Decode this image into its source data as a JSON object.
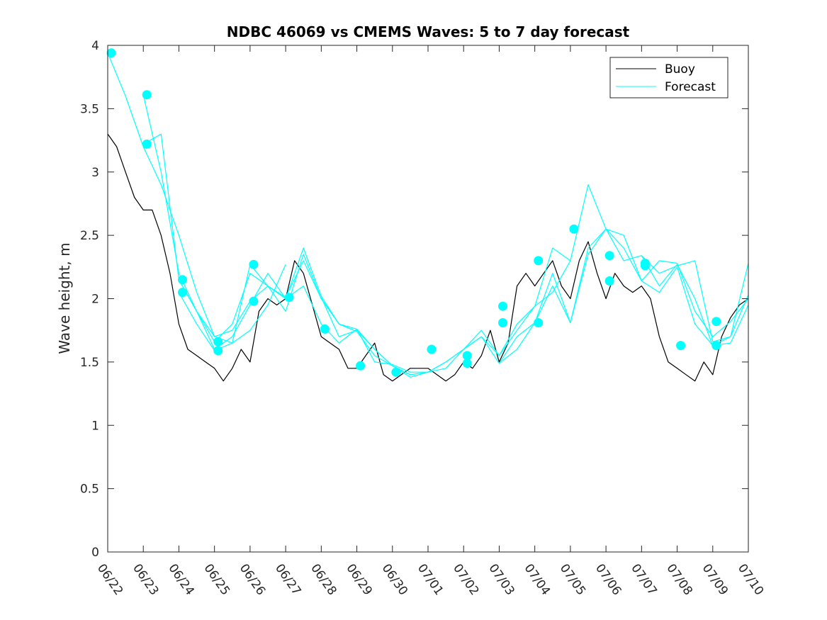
{
  "chart_data": {
    "type": "line",
    "title": "NDBC 46069 vs CMEMS Waves: 5 to 7 day forecast",
    "xlabel": "",
    "ylabel": "Wave height, m",
    "xlim": [
      "06/22",
      "07/10"
    ],
    "ylim": [
      0,
      4
    ],
    "x_tick_labels": [
      "06/22",
      "06/23",
      "06/24",
      "06/25",
      "06/26",
      "06/27",
      "06/28",
      "06/29",
      "06/30",
      "07/01",
      "07/02",
      "07/03",
      "07/04",
      "07/05",
      "07/06",
      "07/07",
      "07/08",
      "07/09",
      "07/10"
    ],
    "y_ticks": [
      0,
      0.5,
      1,
      1.5,
      2,
      2.5,
      3,
      3.5,
      4
    ],
    "y_tick_labels": [
      "0",
      "0.5",
      "1",
      "1.5",
      "2",
      "2.5",
      "3",
      "3.5",
      "4"
    ],
    "grid": false,
    "legend_position": "top-right",
    "legend": [
      "Buoy",
      "Forecast"
    ],
    "series_colors": {
      "Buoy": "#000000",
      "Forecast": "#00ffff"
    },
    "buoy": {
      "name": "Buoy",
      "x_days": [
        0,
        0.25,
        0.5,
        0.75,
        1,
        1.25,
        1.5,
        1.75,
        2,
        2.25,
        2.5,
        2.75,
        3,
        3.25,
        3.5,
        3.75,
        4,
        4.25,
        4.5,
        4.75,
        5,
        5.25,
        5.5,
        5.75,
        6,
        6.25,
        6.5,
        6.75,
        7,
        7.25,
        7.5,
        7.75,
        8,
        8.25,
        8.5,
        8.75,
        9,
        9.25,
        9.5,
        9.75,
        10,
        10.25,
        10.5,
        10.75,
        11,
        11.25,
        11.5,
        11.75,
        12,
        12.25,
        12.5,
        12.75,
        13,
        13.25,
        13.5,
        13.75,
        14,
        14.25,
        14.5,
        14.75,
        15,
        15.25,
        15.5,
        15.75,
        16,
        16.25,
        16.5,
        16.75,
        17,
        17.25,
        17.5,
        17.75,
        18
      ],
      "y": [
        3.3,
        3.2,
        3.0,
        2.8,
        2.7,
        2.7,
        2.5,
        2.2,
        1.8,
        1.6,
        1.55,
        1.5,
        1.45,
        1.35,
        1.45,
        1.6,
        1.5,
        1.9,
        2.0,
        1.95,
        2.0,
        2.3,
        2.2,
        1.95,
        1.7,
        1.65,
        1.6,
        1.45,
        1.45,
        1.55,
        1.65,
        1.4,
        1.35,
        1.4,
        1.45,
        1.45,
        1.45,
        1.4,
        1.35,
        1.4,
        1.5,
        1.45,
        1.55,
        1.75,
        1.5,
        1.65,
        2.1,
        2.2,
        2.1,
        2.2,
        2.3,
        2.1,
        2.0,
        2.3,
        2.45,
        2.2,
        2.0,
        2.2,
        2.1,
        2.05,
        2.1,
        2.0,
        1.7,
        1.5,
        1.45,
        1.4,
        1.35,
        1.5,
        1.4,
        1.7,
        1.85,
        1.95,
        2.0
      ]
    },
    "forecasts": [
      {
        "name": "Forecast",
        "x_days": [
          0,
          0.5,
          1,
          1.5,
          2,
          2.5,
          3,
          3.5,
          4,
          4.5,
          5
        ],
        "y": [
          3.94,
          3.6,
          3.2,
          2.9,
          2.5,
          2.05,
          1.7,
          1.65,
          1.75,
          1.95,
          2.27
        ]
      },
      {
        "name": "Forecast",
        "x_days": [
          1,
          1.5,
          2,
          2.5,
          3,
          3.5,
          4,
          4.5,
          5,
          5.5,
          6,
          6.5,
          7
        ],
        "y": [
          3.61,
          3.0,
          2.2,
          1.9,
          1.6,
          1.7,
          1.95,
          2.2,
          2.0,
          2.1,
          1.8,
          1.65,
          1.76
        ]
      },
      {
        "name": "Forecast",
        "x_days": [
          1,
          1.5,
          2,
          2.5,
          3,
          3.5,
          4,
          4.5,
          5,
          5.5,
          6,
          6.5,
          7
        ],
        "y": [
          3.22,
          3.3,
          2.15,
          1.9,
          1.66,
          1.8,
          2.2,
          2.1,
          2.01,
          2.3,
          2.0,
          1.8,
          1.74
        ]
      },
      {
        "name": "Forecast",
        "x_days": [
          2,
          2.5,
          3,
          3.5,
          4,
          4.5,
          5,
          5.5,
          6,
          6.5,
          7,
          7.5,
          8,
          8.5,
          9
        ],
        "y": [
          2.15,
          1.9,
          1.7,
          1.75,
          1.98,
          2.1,
          2.0,
          2.4,
          2.02,
          1.8,
          1.74,
          1.55,
          1.47,
          1.4,
          1.42
        ]
      },
      {
        "name": "Forecast",
        "x_days": [
          2,
          2.5,
          3,
          3.5,
          4,
          4.5,
          5,
          5.5,
          6,
          6.5,
          7,
          7.5,
          8,
          8.5,
          9,
          9.5,
          10
        ],
        "y": [
          2.05,
          1.8,
          1.59,
          1.65,
          2.27,
          2.1,
          1.9,
          2.35,
          2.0,
          1.8,
          1.76,
          1.5,
          1.48,
          1.42,
          1.42,
          1.45,
          1.6
        ]
      },
      {
        "name": "Forecast",
        "x_days": [
          6,
          6.5,
          7,
          7.5,
          8,
          8.5,
          9,
          9.5,
          10,
          10.5,
          11,
          11.5,
          12,
          12.5,
          13
        ],
        "y": [
          2.01,
          1.7,
          1.75,
          1.6,
          1.47,
          1.4,
          1.42,
          1.5,
          1.6,
          1.75,
          1.55,
          1.8,
          1.94,
          2.05,
          2.3
        ]
      },
      {
        "name": "Forecast",
        "x_days": [
          7,
          7.5,
          8,
          8.5,
          9,
          9.5,
          10,
          10.5,
          11,
          11.5,
          12,
          12.5,
          13,
          13.5,
          14
        ],
        "y": [
          1.76,
          1.6,
          1.47,
          1.38,
          1.42,
          1.5,
          1.6,
          1.7,
          1.49,
          1.7,
          1.81,
          2.2,
          1.81,
          2.4,
          2.55
        ]
      },
      {
        "name": "Forecast",
        "x_days": [
          10,
          10.5,
          11,
          11.5,
          12,
          12.5,
          13,
          13.5,
          14,
          14.5,
          15,
          15.5,
          16
        ],
        "y": [
          1.6,
          1.7,
          1.55,
          1.75,
          1.94,
          2.4,
          2.3,
          2.9,
          2.55,
          2.4,
          2.14,
          2.3,
          2.28
        ]
      },
      {
        "name": "Forecast",
        "x_days": [
          11,
          11.5,
          12,
          12.5,
          13,
          13.5,
          14,
          14.5,
          15,
          15.5,
          16,
          16.5,
          17,
          17.5,
          18
        ],
        "y": [
          1.49,
          1.6,
          1.81,
          2.1,
          1.81,
          2.35,
          2.55,
          2.3,
          2.34,
          2.1,
          2.27,
          2.0,
          1.63,
          1.65,
          1.95
        ]
      },
      {
        "name": "Forecast",
        "x_days": [
          14,
          14.5,
          15,
          15.5,
          16,
          16.5,
          17,
          17.5,
          18
        ],
        "y": [
          2.55,
          2.5,
          2.14,
          2.05,
          2.25,
          1.8,
          1.63,
          1.7,
          2.03
        ]
      },
      {
        "name": "Forecast",
        "x_days": [
          15,
          15.5,
          16,
          16.5,
          17,
          17.5,
          18
        ],
        "y": [
          2.34,
          2.2,
          2.26,
          2.3,
          1.66,
          1.7,
          2.28
        ]
      },
      {
        "name": "Forecast",
        "x_days": [
          16,
          16.5,
          17,
          17.5,
          18
        ],
        "y": [
          2.28,
          1.9,
          1.7,
          1.82,
          2.0
        ]
      }
    ],
    "markers": {
      "x_days": [
        0.1,
        1.1,
        1.1,
        2.1,
        2.1,
        3.1,
        3.1,
        4.1,
        4.1,
        5.1,
        6.1,
        7.1,
        8.1,
        9.1,
        10.1,
        10.1,
        11.1,
        11.1,
        12.1,
        12.1,
        13.1,
        14.1,
        14.1,
        15.1,
        15.1,
        16.1,
        17.1,
        17.1
      ],
      "y": [
        3.94,
        3.61,
        3.22,
        2.15,
        2.05,
        1.66,
        1.59,
        2.27,
        1.98,
        2.01,
        1.76,
        1.47,
        1.42,
        1.6,
        1.55,
        1.49,
        1.94,
        1.81,
        2.3,
        1.81,
        2.55,
        2.34,
        2.14,
        2.28,
        2.26,
        1.63,
        1.82,
        1.63
      ]
    }
  }
}
